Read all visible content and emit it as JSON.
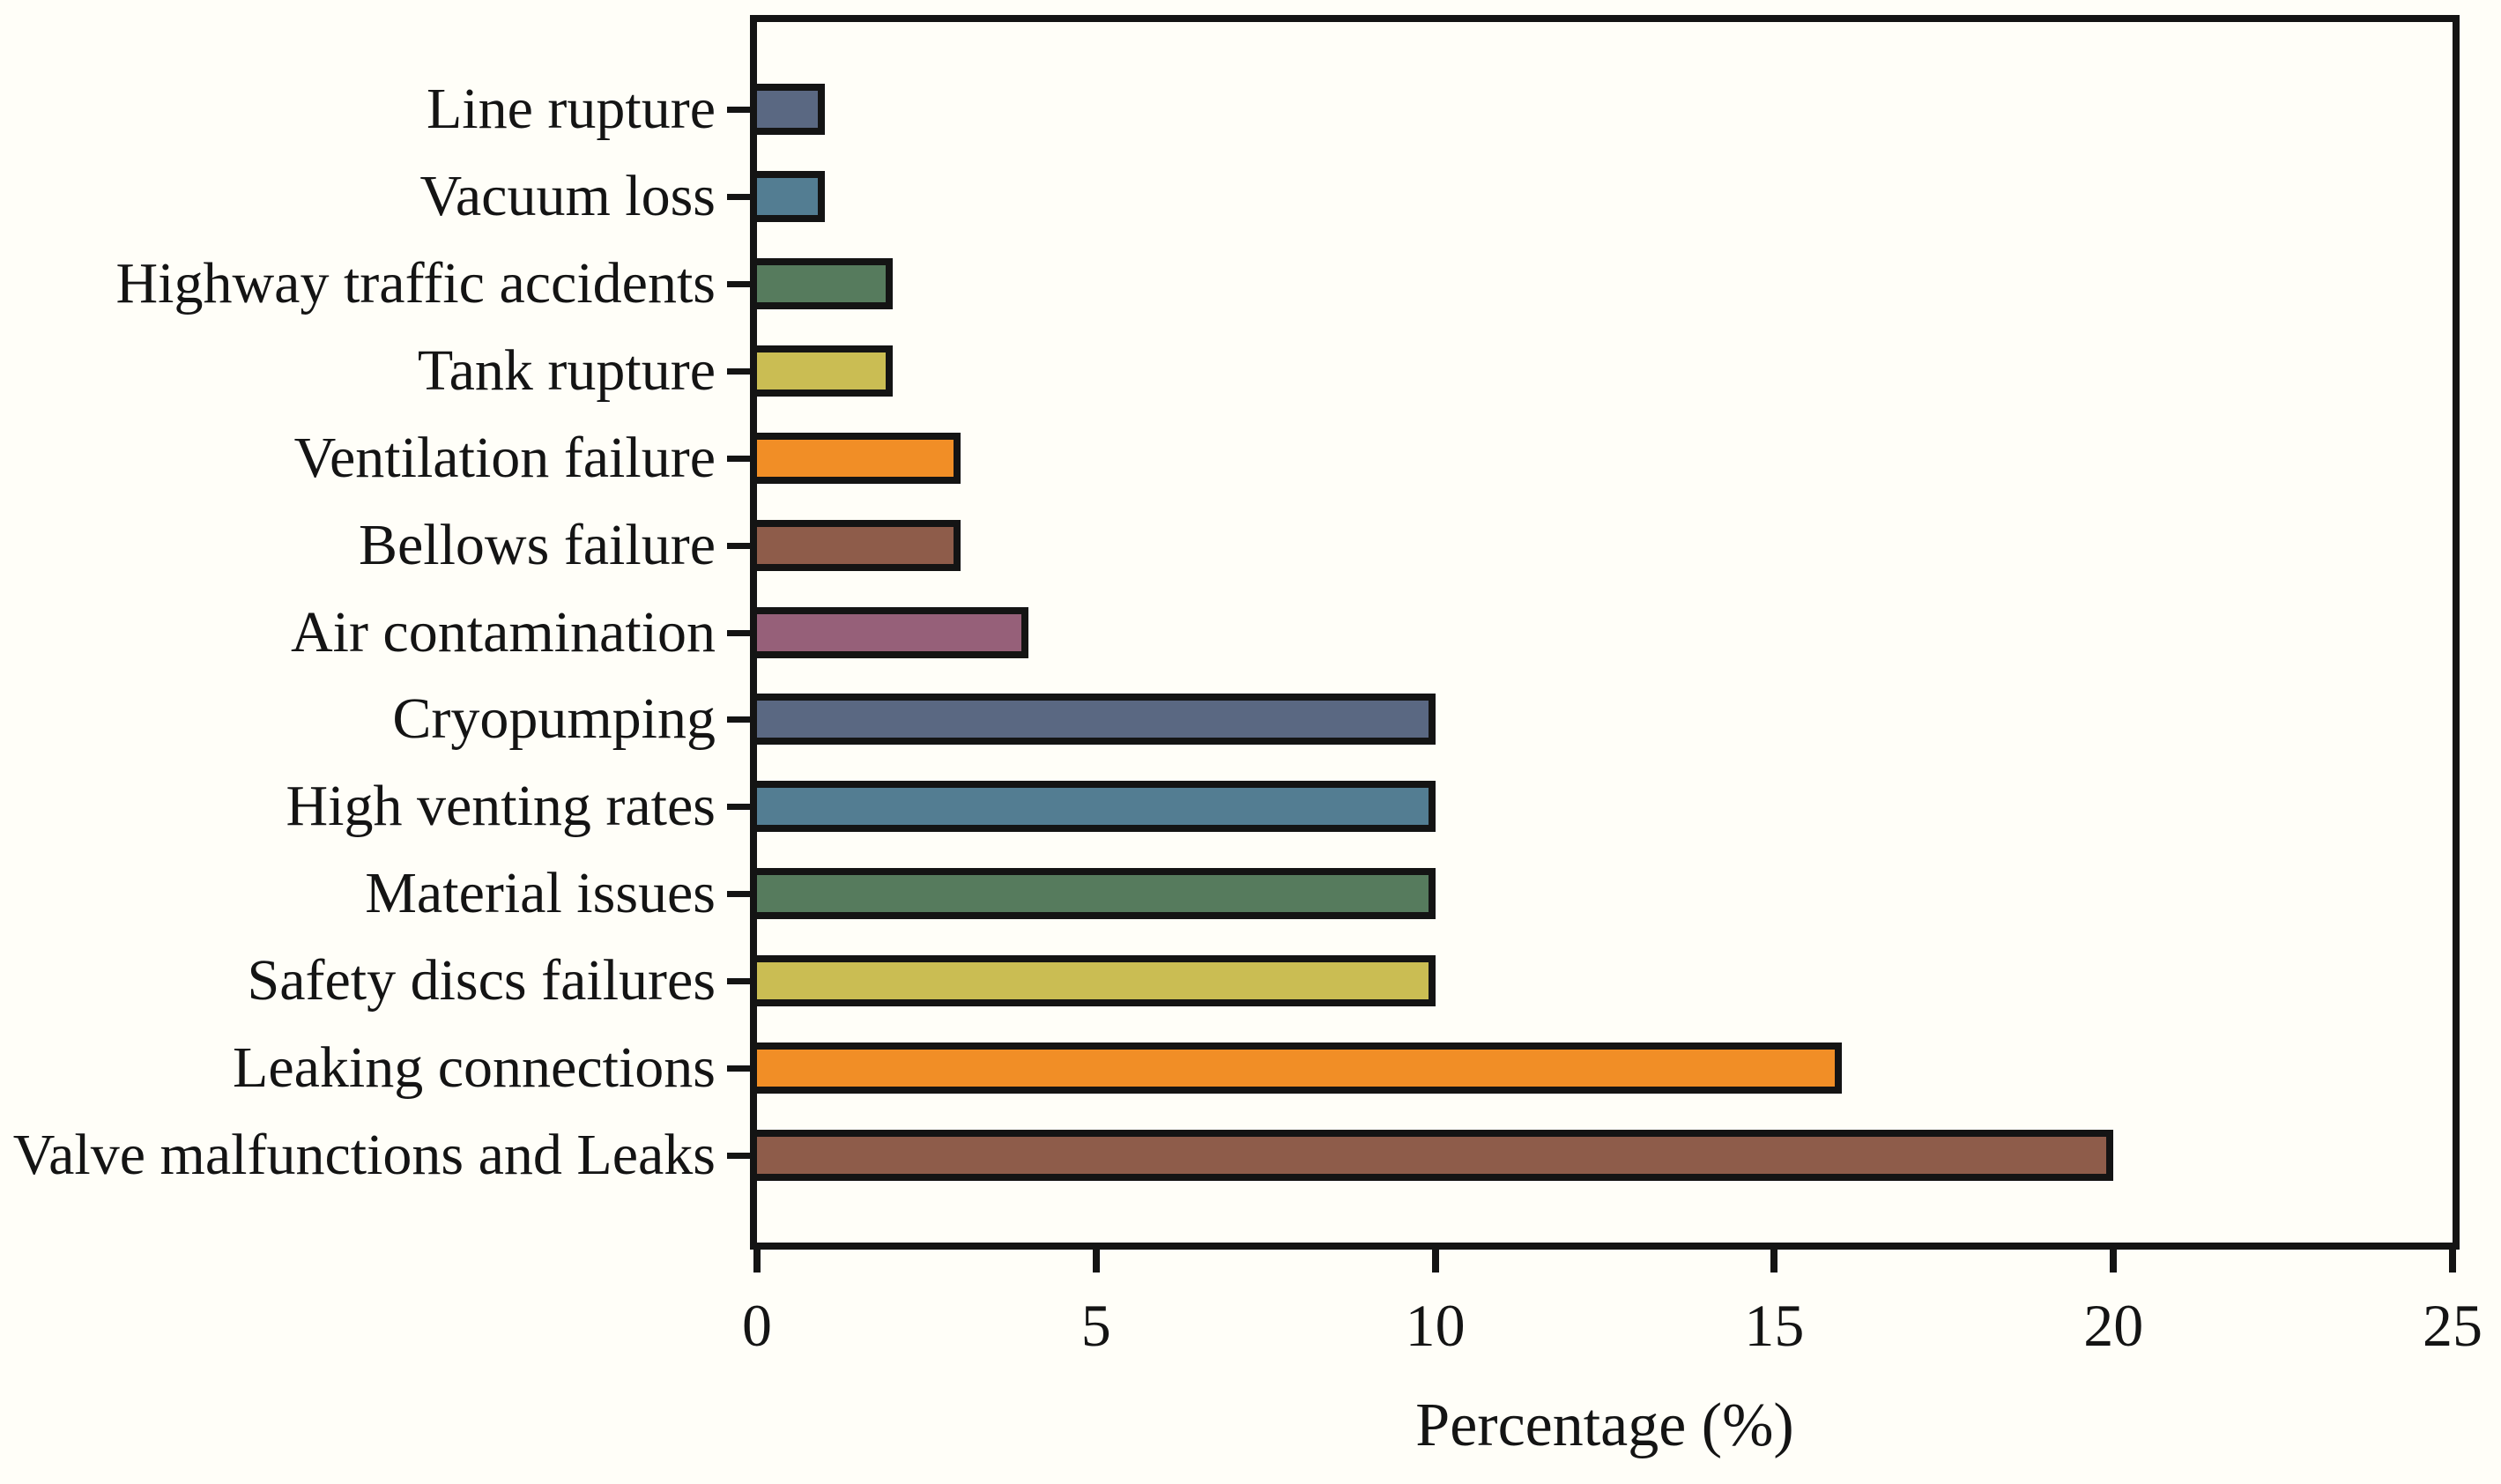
{
  "figure": {
    "background": "#fffef8",
    "axis_color": "#141414"
  },
  "chart_data": {
    "type": "bar",
    "orientation": "horizontal",
    "title": "",
    "xlabel": "Percentage (%)",
    "ylabel": "",
    "categories": [
      "Line rupture",
      "Vacuum loss",
      "Highway traffic accidents",
      "Tank rupture",
      "Ventilation failure",
      "Bellows failure",
      "Air contamination",
      "Cryopumping",
      "High venting rates",
      "Material issues",
      "Safety discs failures",
      "Leaking connections",
      "Valve malfunctions and Leaks"
    ],
    "values": [
      1,
      1,
      2,
      2,
      3,
      3,
      4,
      10,
      10,
      10,
      10,
      16,
      20
    ],
    "bar_colors": [
      "#5a6882",
      "#537d92",
      "#567b5d",
      "#cabd53",
      "#f18e26",
      "#8e5c4a",
      "#966079",
      "#5a6882",
      "#537d92",
      "#567b5d",
      "#cabd53",
      "#f18e26",
      "#8e5c4a"
    ],
    "bar_edge_color": "#141414",
    "x_ticks": [
      0,
      5,
      10,
      15,
      20,
      25
    ],
    "xlim": [
      0,
      25
    ],
    "grid": false,
    "legend": null
  }
}
